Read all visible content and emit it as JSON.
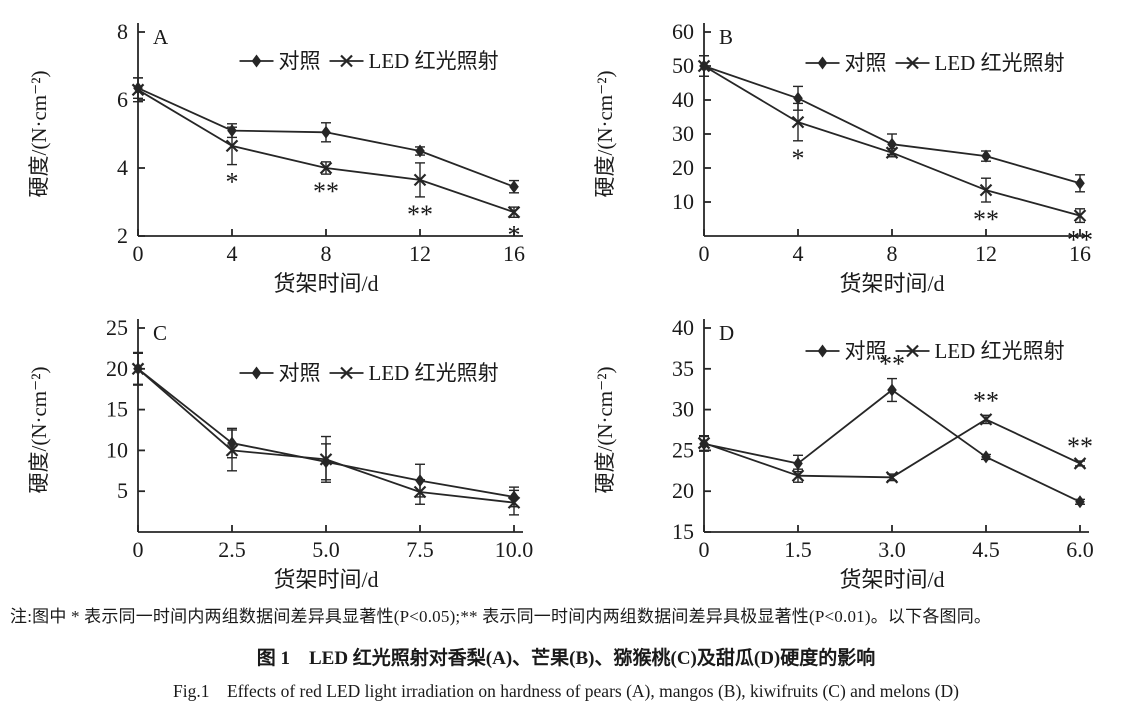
{
  "colors": {
    "line": "#262626",
    "text": "#1a1a1a",
    "background": "#ffffff"
  },
  "legend": {
    "control_label": "对照",
    "led_label": "LED 红光照射"
  },
  "figure": {
    "note": "注:图中 * 表示同一时间内两组数据间差异具显著性(P<0.05);** 表示同一时间内两组数据间差异具极显著性(P<0.01)。以下各图同。",
    "title_zh": "图 1　LED 红光照射对香梨(A)、芒果(B)、猕猴桃(C)及甜瓜(D)硬度的影响",
    "title_en": "Fig.1　Effects of red LED light irradiation on hardness of pears (A), mangos (B), kiwifruits (C) and melons (D)"
  },
  "chart_data": [
    {
      "type": "line",
      "panel": "A",
      "xlabel": "货架时间/d",
      "ylabel": "硬度/(N·cm⁻²)",
      "x": [
        0,
        4,
        8,
        12,
        16
      ],
      "x_tick_labels": [
        "0",
        "4",
        "8",
        "12",
        "16"
      ],
      "ylim": [
        2,
        8
      ],
      "y_ticks": [
        2,
        4,
        6,
        8
      ],
      "legend_position": "inside-top",
      "legend_dy": 36,
      "grid": false,
      "series": [
        {
          "name": "对照",
          "marker": "diamond",
          "values": [
            6.35,
            5.1,
            5.05,
            4.5,
            3.45
          ],
          "errors": [
            0.3,
            0.2,
            0.28,
            0.12,
            0.18
          ]
        },
        {
          "name": "LED 红光照射",
          "marker": "x",
          "values": [
            6.3,
            4.65,
            4.0,
            3.65,
            2.7
          ],
          "errors": [
            0.35,
            0.55,
            0.18,
            0.5,
            0.15
          ]
        }
      ],
      "significance": [
        {
          "series": 1,
          "index": 1,
          "label": "*",
          "position": "below"
        },
        {
          "series": 1,
          "index": 2,
          "label": "**",
          "position": "below"
        },
        {
          "series": 1,
          "index": 3,
          "label": "**",
          "position": "below"
        },
        {
          "series": 1,
          "index": 4,
          "label": "*",
          "position": "below"
        }
      ]
    },
    {
      "type": "line",
      "panel": "B",
      "xlabel": "货架时间/d",
      "ylabel": "硬度/(N·cm⁻²)",
      "x": [
        0,
        4,
        8,
        12,
        16
      ],
      "x_tick_labels": [
        "0",
        "4",
        "8",
        "12",
        "16"
      ],
      "ylim": [
        0,
        60
      ],
      "y_ticks": [
        10,
        20,
        30,
        40,
        50,
        60
      ],
      "legend_position": "inside-top",
      "legend_dy": 38,
      "grid": false,
      "series": [
        {
          "name": "对照",
          "marker": "diamond",
          "values": [
            50,
            40.5,
            27,
            23.5,
            15.5
          ],
          "errors": [
            3,
            3.5,
            3,
            1.5,
            2.5
          ]
        },
        {
          "name": "LED 红光照射",
          "marker": "x",
          "values": [
            50,
            33.5,
            24.5,
            13.5,
            6
          ],
          "errors": [
            3,
            5.5,
            1.2,
            3.5,
            2
          ]
        }
      ],
      "significance": [
        {
          "series": 1,
          "index": 1,
          "label": "*",
          "position": "below"
        },
        {
          "series": 1,
          "index": 3,
          "label": "**",
          "position": "below"
        },
        {
          "series": 1,
          "index": 4,
          "label": "**",
          "position": "below"
        }
      ]
    },
    {
      "type": "line",
      "panel": "C",
      "xlabel": "货架时间/d",
      "ylabel": "硬度/(N·cm⁻²)",
      "x": [
        0,
        2.5,
        5,
        7.5,
        10
      ],
      "x_tick_labels": [
        "0",
        "2.5",
        "5.0",
        "7.5",
        "10.0"
      ],
      "ylim": [
        0,
        25
      ],
      "y_ticks": [
        5,
        10,
        15,
        20,
        25
      ],
      "legend_position": "inside-top",
      "legend_dy": 52,
      "grid": false,
      "series": [
        {
          "name": "对照",
          "marker": "diamond",
          "values": [
            20,
            10.9,
            8.6,
            6.3,
            4.3
          ],
          "errors": [
            1.9,
            1.8,
            2.2,
            2.0,
            1.2
          ]
        },
        {
          "name": "LED 红光照射",
          "marker": "x",
          "values": [
            20,
            10,
            8.9,
            4.9,
            3.6
          ],
          "errors": [
            2.0,
            2.5,
            2.8,
            1.5,
            1.5
          ]
        }
      ],
      "significance": []
    },
    {
      "type": "line",
      "panel": "D",
      "xlabel": "货架时间/d",
      "ylabel": "硬度/(N·cm⁻²)",
      "x": [
        0,
        1.5,
        3,
        4.5,
        6
      ],
      "x_tick_labels": [
        "0",
        "1.5",
        "3.0",
        "4.5",
        "6.0"
      ],
      "ylim": [
        15,
        40
      ],
      "y_ticks": [
        15,
        20,
        25,
        30,
        35,
        40
      ],
      "legend_position": "inside-top",
      "legend_dy": 30,
      "grid": false,
      "series": [
        {
          "name": "对照",
          "marker": "diamond",
          "values": [
            25.8,
            23.4,
            32.4,
            24.2,
            18.7
          ],
          "errors": [
            0.9,
            1.0,
            1.4,
            0.3,
            0.3
          ]
        },
        {
          "name": "LED 红光照射",
          "marker": "x",
          "values": [
            25.9,
            21.9,
            21.7,
            28.8,
            23.4
          ],
          "errors": [
            0.9,
            0.8,
            0.4,
            0.5,
            0.3
          ]
        }
      ],
      "significance": [
        {
          "series": 0,
          "index": 2,
          "label": "**",
          "position": "above"
        },
        {
          "series": 1,
          "index": 3,
          "label": "**",
          "position": "above"
        },
        {
          "series": 1,
          "index": 4,
          "label": "**",
          "position": "above"
        }
      ]
    }
  ]
}
